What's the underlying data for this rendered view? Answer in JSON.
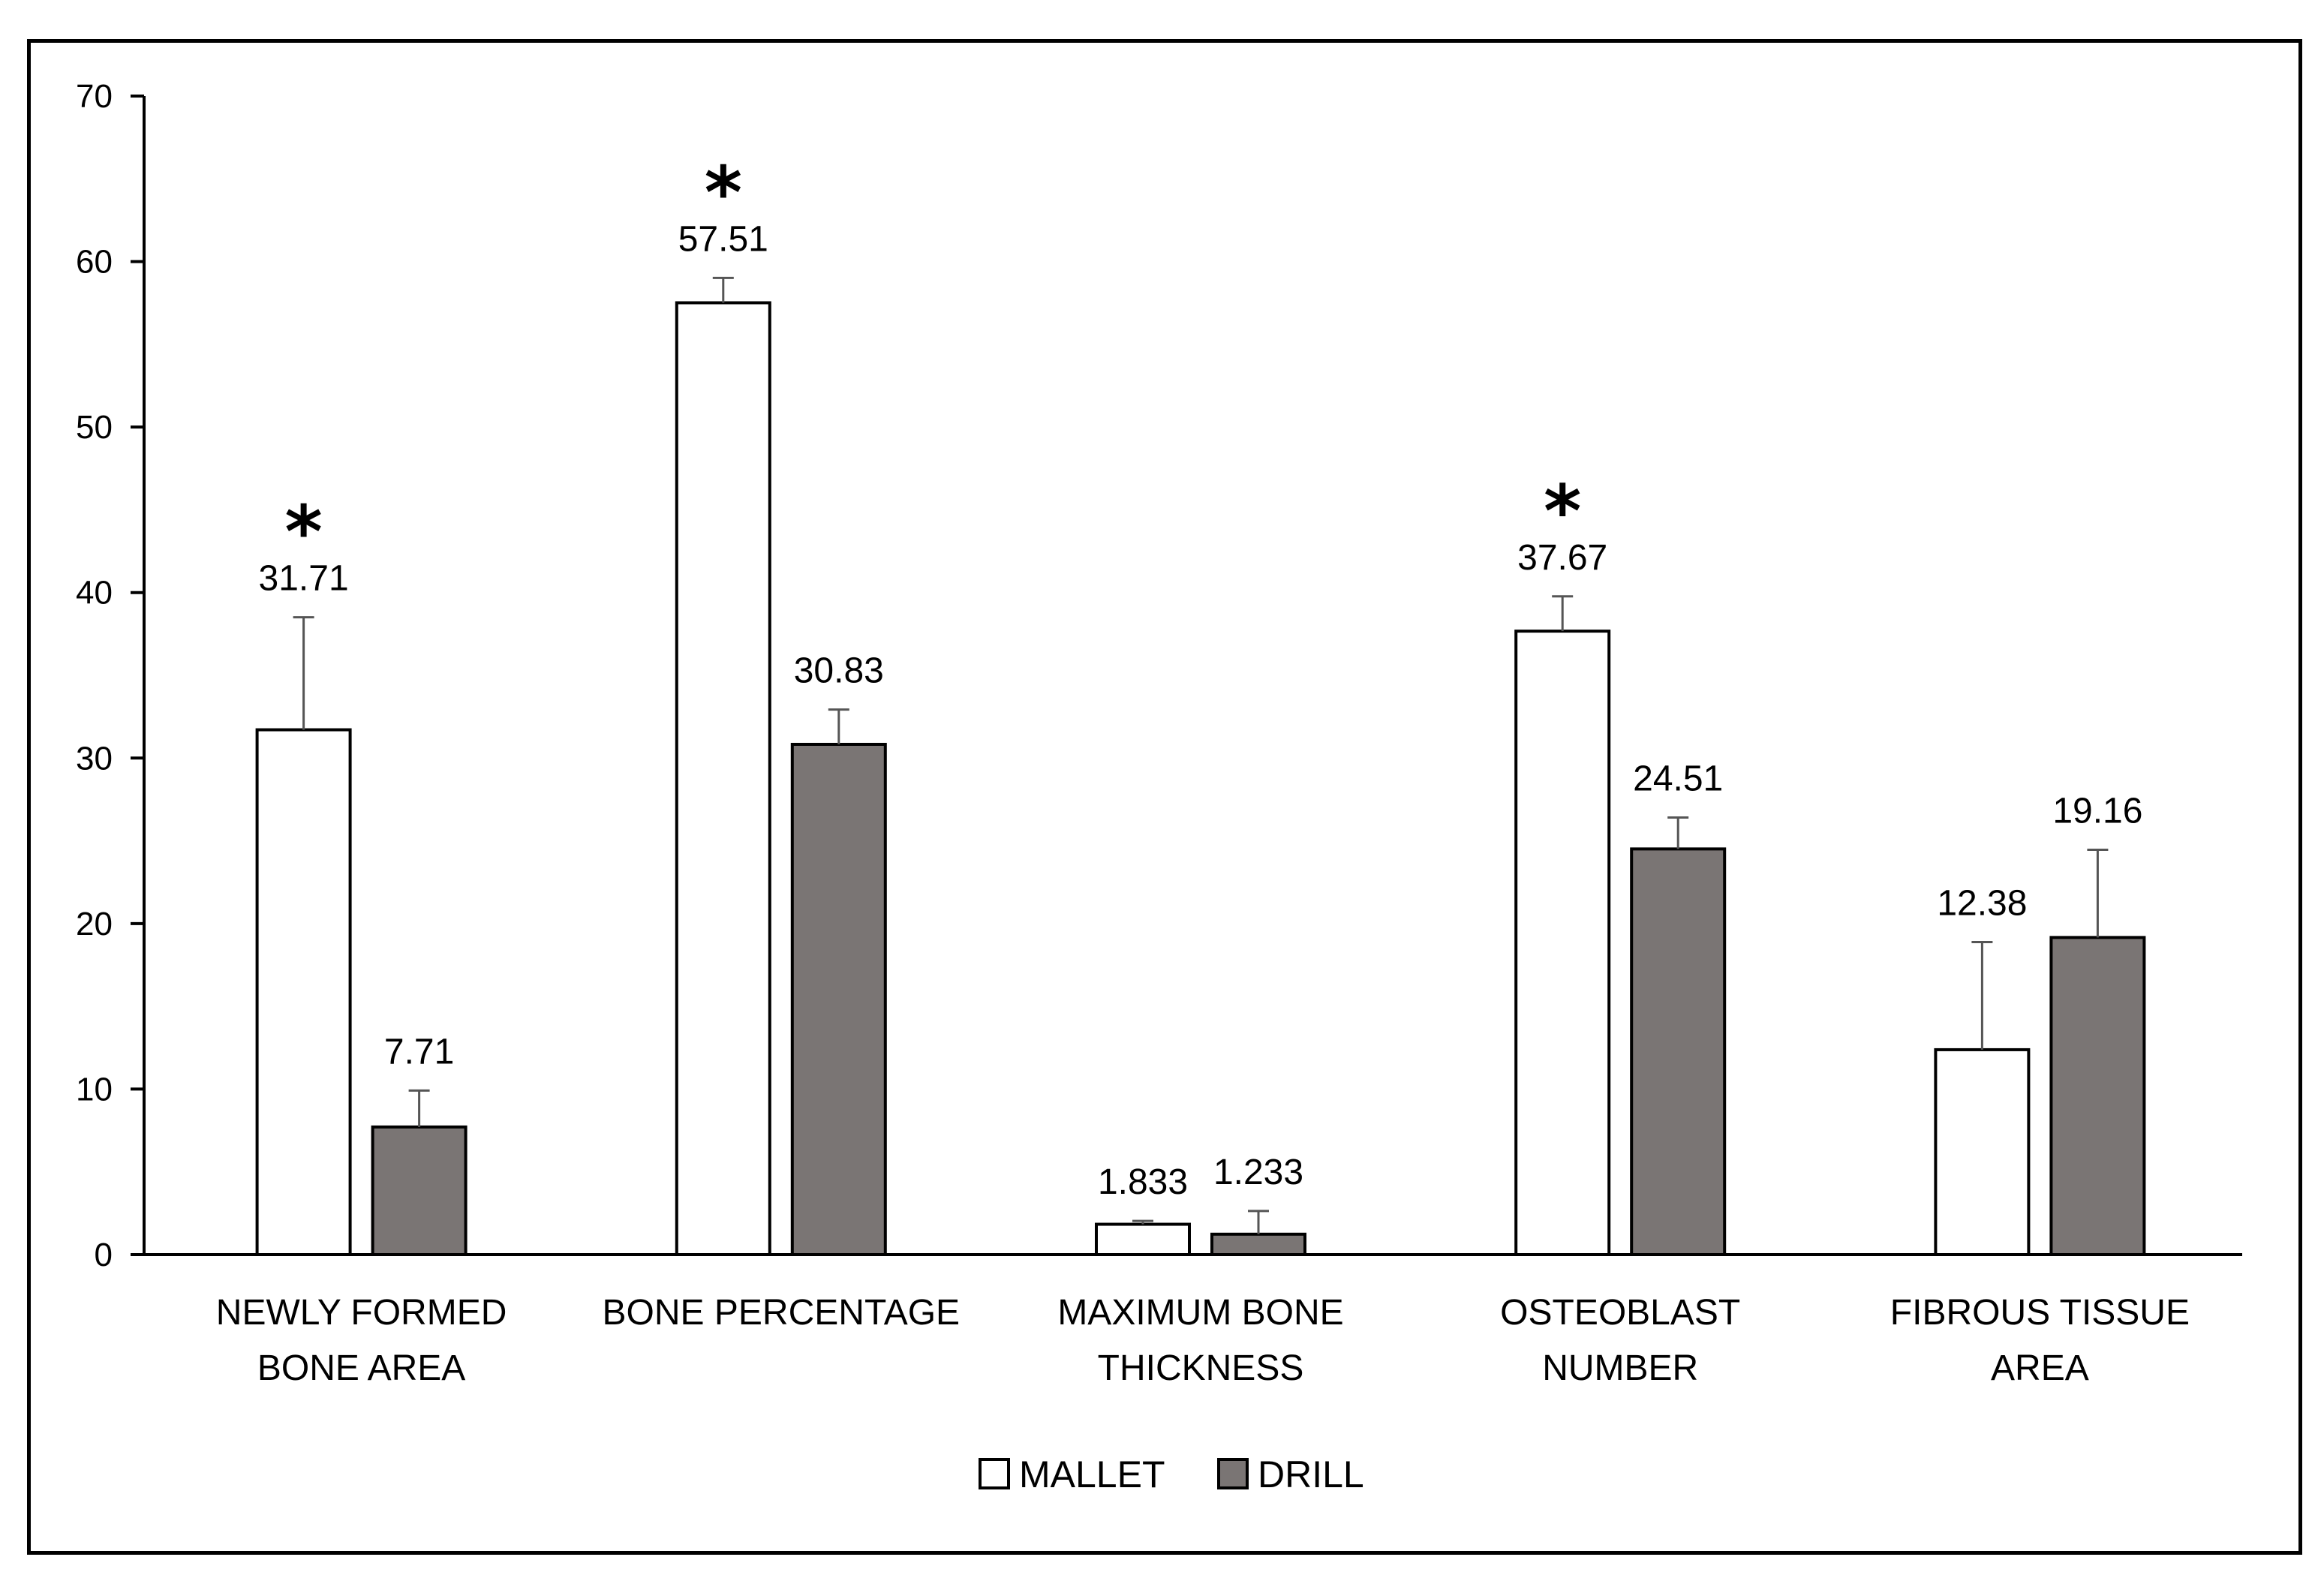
{
  "chart_data": {
    "type": "bar",
    "categories": [
      [
        "NEWLY FORMED",
        "BONE AREA"
      ],
      [
        "BONE PERCENTAGE"
      ],
      [
        "MAXIMUM BONE",
        "THICKNESS"
      ],
      [
        "OSTEOBLAST",
        "NUMBER"
      ],
      [
        "FIBROUS TISSUE",
        "AREA"
      ]
    ],
    "series": [
      {
        "name": "MALLET",
        "color": "#ffffff",
        "values": [
          31.71,
          57.51,
          1.833,
          37.67,
          12.38
        ],
        "labels": [
          "31.71",
          "57.51",
          "1.833",
          "37.67",
          "12.38"
        ],
        "error": [
          6.8,
          1.5,
          0.2,
          2.1,
          6.5
        ]
      },
      {
        "name": "DRILL",
        "color": "#7a7574",
        "values": [
          7.71,
          30.83,
          1.233,
          24.51,
          19.16
        ],
        "labels": [
          "7.71",
          "30.83",
          "1.233",
          "24.51",
          "19.16"
        ],
        "error": [
          2.2,
          2.1,
          1.4,
          1.9,
          5.3
        ]
      }
    ],
    "significance": {
      "symbol": "*",
      "categories": [
        0,
        1,
        3
      ]
    },
    "yticks": [
      "0",
      "10",
      "20",
      "30",
      "40",
      "50",
      "60",
      "70"
    ],
    "ylim": [
      0,
      70
    ],
    "grid": false,
    "legend": "bottom-center",
    "title": "",
    "xlabel": "",
    "ylabel": ""
  }
}
